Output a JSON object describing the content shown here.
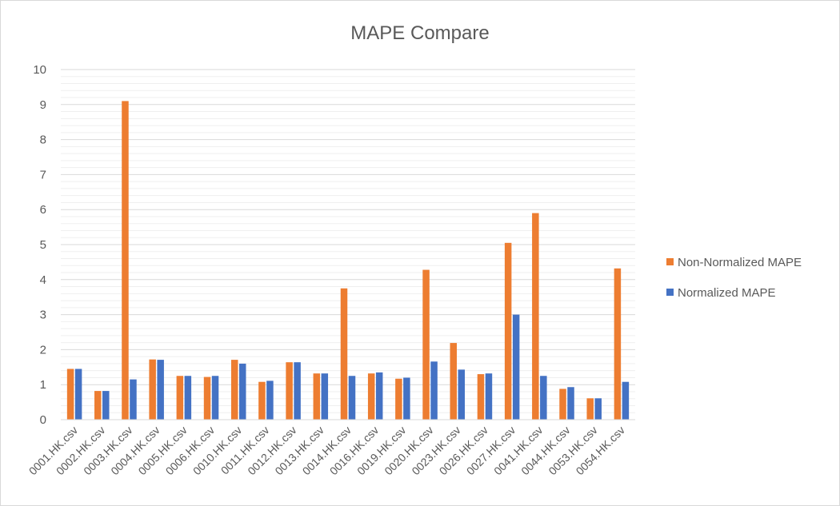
{
  "chart_data": {
    "type": "bar",
    "title": "MAPE Compare",
    "xlabel": "",
    "ylabel": "",
    "ylim": [
      0,
      10
    ],
    "yticks": [
      0,
      1,
      2,
      3,
      4,
      5,
      6,
      7,
      8,
      9,
      10
    ],
    "grid": true,
    "legend_position": "right",
    "categories": [
      "0001.HK.csv",
      "0002.HK.csv",
      "0003.HK.csv",
      "0004.HK.csv",
      "0005.HK.csv",
      "0006.HK.csv",
      "0010.HK.csv",
      "0011.HK.csv",
      "0012.HK.csv",
      "0013.HK.csv",
      "0014.HK.csv",
      "0016.HK.csv",
      "0019.HK.csv",
      "0020.HK.csv",
      "0023.HK.csv",
      "0026.HK.csv",
      "0027.HK.csv",
      "0041.HK.csv",
      "0044.HK.csv",
      "0053.HK.csv",
      "0054.HK.csv"
    ],
    "series": [
      {
        "name": "Non-Normalized MAPE",
        "color": "#ED7D31",
        "values": [
          1.45,
          0.82,
          9.1,
          1.72,
          1.25,
          1.22,
          1.71,
          1.08,
          1.64,
          1.32,
          3.75,
          1.32,
          1.17,
          4.28,
          2.19,
          1.3,
          5.05,
          5.9,
          0.88,
          0.61,
          4.32
        ]
      },
      {
        "name": "Normalized MAPE",
        "color": "#4472C4",
        "values": [
          1.45,
          0.82,
          1.15,
          1.71,
          1.25,
          1.25,
          1.6,
          1.11,
          1.64,
          1.32,
          1.25,
          1.35,
          1.2,
          1.66,
          1.43,
          1.32,
          3.0,
          1.25,
          0.93,
          0.61,
          1.08
        ]
      }
    ]
  }
}
